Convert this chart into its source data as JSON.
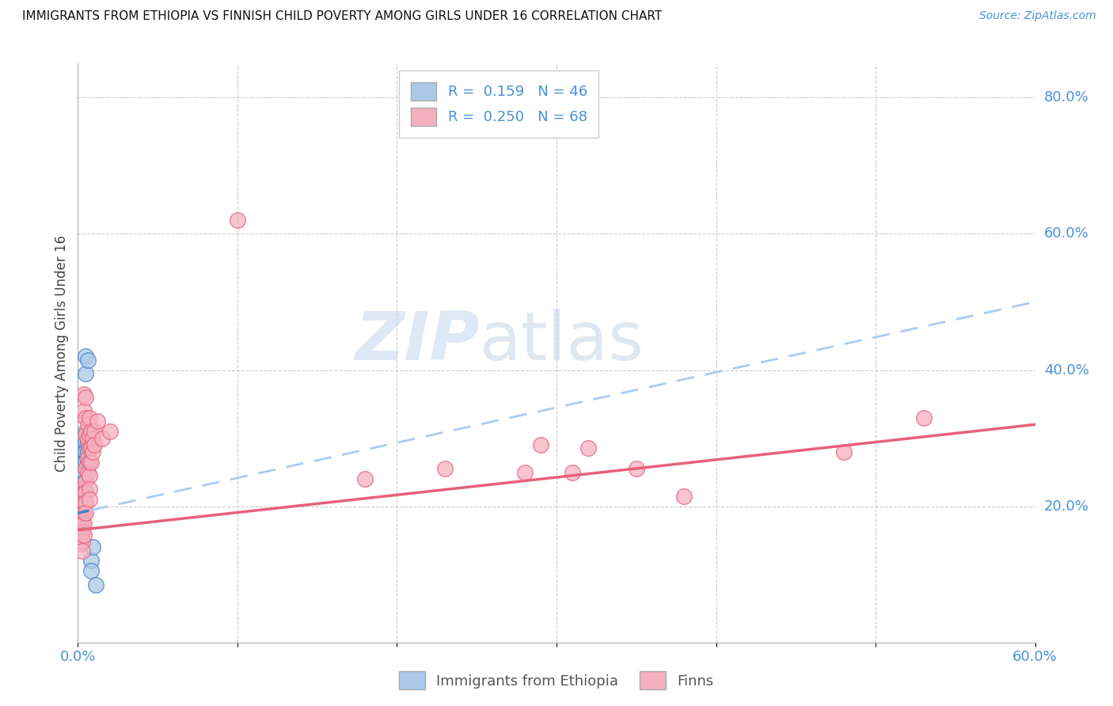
{
  "title": "IMMIGRANTS FROM ETHIOPIA VS FINNISH CHILD POVERTY AMONG GIRLS UNDER 16 CORRELATION CHART",
  "source": "Source: ZipAtlas.com",
  "ylabel": "Child Poverty Among Girls Under 16",
  "xlim": [
    0.0,
    0.6
  ],
  "ylim": [
    0.0,
    0.85
  ],
  "watermark_zip": "ZIP",
  "watermark_atlas": "atlas",
  "blue_color": "#aac9e8",
  "pink_color": "#f5b0c0",
  "blue_line_color": "#4a7fc1",
  "pink_line_color": "#e8607a",
  "blue_scatter": [
    [
      0.001,
      0.22
    ],
    [
      0.001,
      0.215
    ],
    [
      0.001,
      0.2
    ],
    [
      0.001,
      0.19
    ],
    [
      0.001,
      0.185
    ],
    [
      0.001,
      0.175
    ],
    [
      0.001,
      0.17
    ],
    [
      0.001,
      0.16
    ],
    [
      0.002,
      0.225
    ],
    [
      0.002,
      0.218
    ],
    [
      0.002,
      0.21
    ],
    [
      0.002,
      0.2
    ],
    [
      0.002,
      0.195
    ],
    [
      0.002,
      0.185
    ],
    [
      0.002,
      0.178
    ],
    [
      0.002,
      0.17
    ],
    [
      0.002,
      0.165
    ],
    [
      0.003,
      0.285
    ],
    [
      0.003,
      0.27
    ],
    [
      0.003,
      0.255
    ],
    [
      0.003,
      0.24
    ],
    [
      0.003,
      0.225
    ],
    [
      0.003,
      0.215
    ],
    [
      0.003,
      0.2
    ],
    [
      0.003,
      0.19
    ],
    [
      0.004,
      0.3
    ],
    [
      0.004,
      0.28
    ],
    [
      0.004,
      0.265
    ],
    [
      0.004,
      0.25
    ],
    [
      0.004,
      0.235
    ],
    [
      0.004,
      0.22
    ],
    [
      0.004,
      0.21
    ],
    [
      0.005,
      0.42
    ],
    [
      0.005,
      0.395
    ],
    [
      0.005,
      0.31
    ],
    [
      0.005,
      0.295
    ],
    [
      0.005,
      0.28
    ],
    [
      0.005,
      0.265
    ],
    [
      0.006,
      0.415
    ],
    [
      0.006,
      0.295
    ],
    [
      0.006,
      0.28
    ],
    [
      0.006,
      0.265
    ],
    [
      0.008,
      0.12
    ],
    [
      0.008,
      0.105
    ],
    [
      0.009,
      0.14
    ],
    [
      0.011,
      0.085
    ]
  ],
  "pink_scatter": [
    [
      0.001,
      0.21
    ],
    [
      0.001,
      0.195
    ],
    [
      0.001,
      0.185
    ],
    [
      0.001,
      0.175
    ],
    [
      0.001,
      0.165
    ],
    [
      0.001,
      0.155
    ],
    [
      0.002,
      0.22
    ],
    [
      0.002,
      0.205
    ],
    [
      0.002,
      0.192
    ],
    [
      0.002,
      0.18
    ],
    [
      0.002,
      0.17
    ],
    [
      0.002,
      0.155
    ],
    [
      0.002,
      0.145
    ],
    [
      0.003,
      0.225
    ],
    [
      0.003,
      0.21
    ],
    [
      0.003,
      0.198
    ],
    [
      0.003,
      0.185
    ],
    [
      0.003,
      0.175
    ],
    [
      0.003,
      0.162
    ],
    [
      0.003,
      0.148
    ],
    [
      0.003,
      0.135
    ],
    [
      0.004,
      0.365
    ],
    [
      0.004,
      0.34
    ],
    [
      0.004,
      0.22
    ],
    [
      0.004,
      0.205
    ],
    [
      0.004,
      0.19
    ],
    [
      0.004,
      0.175
    ],
    [
      0.004,
      0.158
    ],
    [
      0.005,
      0.36
    ],
    [
      0.005,
      0.33
    ],
    [
      0.005,
      0.305
    ],
    [
      0.005,
      0.255
    ],
    [
      0.005,
      0.235
    ],
    [
      0.005,
      0.22
    ],
    [
      0.005,
      0.205
    ],
    [
      0.005,
      0.19
    ],
    [
      0.006,
      0.32
    ],
    [
      0.006,
      0.3
    ],
    [
      0.006,
      0.27
    ],
    [
      0.006,
      0.25
    ],
    [
      0.007,
      0.33
    ],
    [
      0.007,
      0.305
    ],
    [
      0.007,
      0.285
    ],
    [
      0.007,
      0.265
    ],
    [
      0.007,
      0.245
    ],
    [
      0.007,
      0.225
    ],
    [
      0.007,
      0.21
    ],
    [
      0.008,
      0.31
    ],
    [
      0.008,
      0.285
    ],
    [
      0.008,
      0.265
    ],
    [
      0.009,
      0.3
    ],
    [
      0.009,
      0.28
    ],
    [
      0.01,
      0.31
    ],
    [
      0.01,
      0.29
    ],
    [
      0.012,
      0.325
    ],
    [
      0.015,
      0.3
    ],
    [
      0.02,
      0.31
    ],
    [
      0.1,
      0.62
    ],
    [
      0.18,
      0.24
    ],
    [
      0.23,
      0.255
    ],
    [
      0.28,
      0.25
    ],
    [
      0.29,
      0.29
    ],
    [
      0.31,
      0.25
    ],
    [
      0.32,
      0.285
    ],
    [
      0.35,
      0.255
    ],
    [
      0.38,
      0.215
    ],
    [
      0.48,
      0.28
    ],
    [
      0.53,
      0.33
    ]
  ]
}
